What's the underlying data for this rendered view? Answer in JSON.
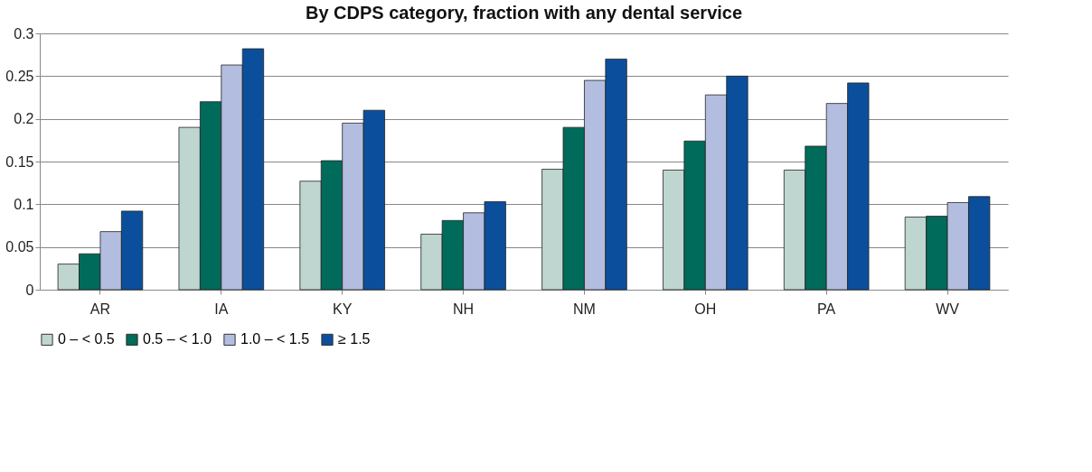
{
  "chart_data": {
    "type": "bar",
    "title": "By CDPS category, fraction with any dental service",
    "categories": [
      "AR",
      "IA",
      "KY",
      "NH",
      "NM",
      "OH",
      "PA",
      "WV"
    ],
    "series": [
      {
        "name": "0 – < 0.5",
        "color": "#bfd6d0",
        "values": [
          0.03,
          0.19,
          0.127,
          0.065,
          0.141,
          0.14,
          0.14,
          0.085
        ]
      },
      {
        "name": "0.5 – < 1.0",
        "color": "#006b5a",
        "values": [
          0.042,
          0.22,
          0.151,
          0.081,
          0.19,
          0.174,
          0.168,
          0.086
        ]
      },
      {
        "name": "1.0 – < 1.5",
        "color": "#b3bddf",
        "values": [
          0.068,
          0.263,
          0.195,
          0.09,
          0.245,
          0.228,
          0.218,
          0.102
        ]
      },
      {
        "name": "≥ 1.5",
        "color": "#0b4f9c",
        "values": [
          0.092,
          0.282,
          0.21,
          0.103,
          0.27,
          0.25,
          0.242,
          0.109
        ]
      }
    ],
    "ylim": [
      0,
      0.3
    ],
    "yticks": [
      0,
      0.05,
      0.1,
      0.15,
      0.2,
      0.25,
      0.3
    ],
    "grid": "y",
    "legend": "bottom"
  }
}
